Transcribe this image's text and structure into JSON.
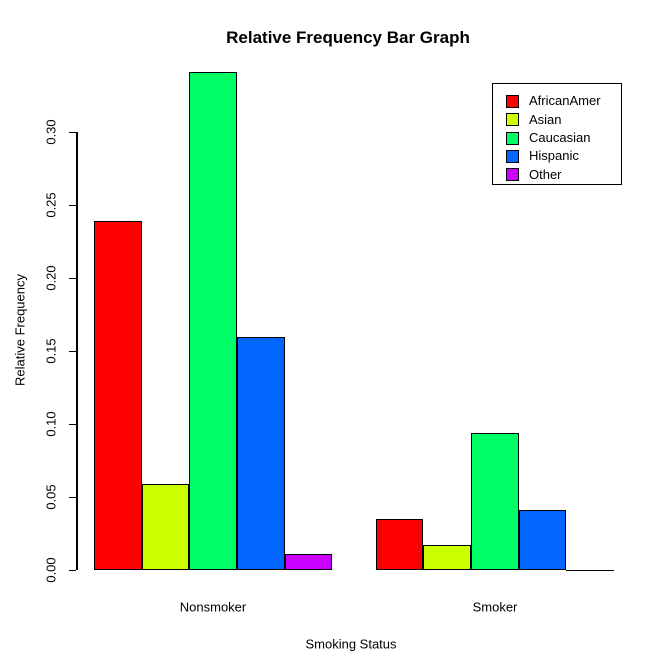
{
  "title": "Relative Frequency Bar Graph",
  "chart_data": {
    "type": "bar",
    "title": "Relative Frequency Bar Graph",
    "xlabel": "Smoking Status",
    "ylabel": "Relative Frequency",
    "categories": [
      "Nonsmoker",
      "Smoker"
    ],
    "series": [
      {
        "name": "AfricanAmer",
        "color": "#FF0000",
        "values": [
          0.239,
          0.035
        ]
      },
      {
        "name": "Asian",
        "color": "#CCFF00",
        "values": [
          0.059,
          0.017
        ]
      },
      {
        "name": "Caucasian",
        "color": "#00FF66",
        "values": [
          0.341,
          0.094
        ]
      },
      {
        "name": "Hispanic",
        "color": "#0066FF",
        "values": [
          0.16,
          0.041
        ]
      },
      {
        "name": "Other",
        "color": "#CC00FF",
        "values": [
          0.011,
          0.0
        ]
      }
    ],
    "ylim": [
      0,
      0.3
    ],
    "yticks": [
      0.0,
      0.05,
      0.1,
      0.15,
      0.2,
      0.25,
      0.3
    ],
    "ytick_labels": [
      "0.00",
      "0.05",
      "0.10",
      "0.15",
      "0.20",
      "0.25",
      "0.30"
    ],
    "legend_position": "top-right",
    "grid": false,
    "bar_border_color": "#000000",
    "background_color": "#FFFFFF"
  }
}
